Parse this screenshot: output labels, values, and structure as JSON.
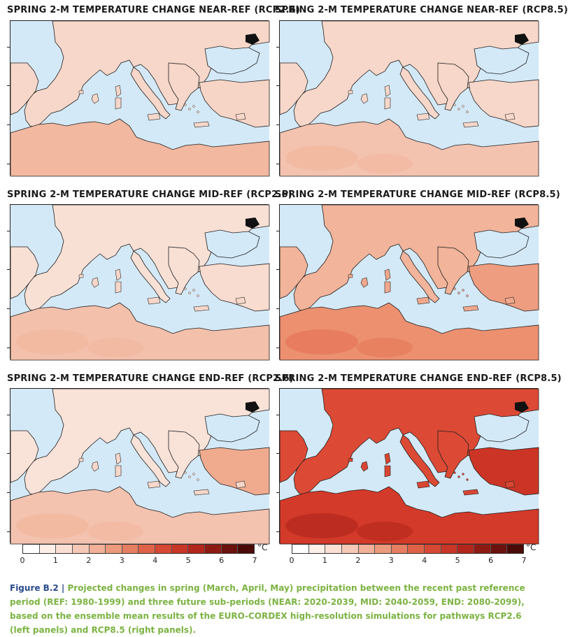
{
  "figure": {
    "label": "Figure B.2",
    "separator": "|",
    "caption": "Projected changes in spring (March, April, May) precipitation between the recent past reference period (REF: 1980-1999) and three future sub-periods (NEAR: 2020-2039, MID: 2040-2059, END: 2080-2099), based on the ensemble mean results of the EURO-CORDEX high-resolution simulations for pathways RCP2.6 (left panels) and RCP8.5 (right panels)."
  },
  "panels": [
    {
      "title": "SPRING 2-M TEMPERATURE CHANGE NEAR-REF (RCP2.6)",
      "north": "#f7d7c9",
      "south": "#f2b8a0",
      "hot": "#f2b8a0",
      "east": "#f7d5c6",
      "islands": "#f7d7c9"
    },
    {
      "title": "SPRING 2-M TEMPERATURE CHANGE NEAR-REF (RCP8.5)",
      "north": "#f7d7c9",
      "south": "#f3c3b0",
      "hot": "#f2b8a0",
      "east": "#f7d7c9",
      "islands": "#f7d7c9"
    },
    {
      "title": "SPRING 2-M TEMPERATURE CHANGE MID-REF (RCP2.6)",
      "north": "#f9e0d5",
      "south": "#f3c0ab",
      "hot": "#f2b8a0",
      "east": "#f8dccf",
      "islands": "#f7d7c9"
    },
    {
      "title": "SPRING 2-M TEMPERATURE CHANGE MID-REF (RCP8.5)",
      "north": "#f2b49a",
      "south": "#ec9070",
      "hot": "#e67a5a",
      "east": "#ee9d80",
      "islands": "#f0a88c"
    },
    {
      "title": "SPRING 2-M TEMPERATURE CHANGE END-REF (RCP2.6)",
      "north": "#f9e2d8",
      "south": "#f3c3b0",
      "hot": "#f2b8a0",
      "east": "#f0ab8f",
      "islands": "#f7d7c9"
    },
    {
      "title": "SPRING 2-M TEMPERATURE CHANGE END-REF (RCP8.5)",
      "north": "#dc4a35",
      "south": "#d33a2a",
      "hot": "#b82a1e",
      "east": "#cc3526",
      "islands": "#d84632"
    }
  ],
  "colorbar": {
    "unit": "°C",
    "labels": [
      "0",
      "1",
      "2",
      "3",
      "4",
      "5",
      "6",
      "7"
    ],
    "colors": [
      "#ffffff",
      "#fdeee7",
      "#fae0d4",
      "#f6c9b6",
      "#f1b097",
      "#ec9a7c",
      "#e67e61",
      "#df6248",
      "#d64734",
      "#c93526",
      "#b2261c",
      "#8e1a14",
      "#6b120f",
      "#4a0b08"
    ]
  },
  "colors": {
    "sea": "#d4e9f7",
    "land_outline": "#1f1f1f"
  }
}
